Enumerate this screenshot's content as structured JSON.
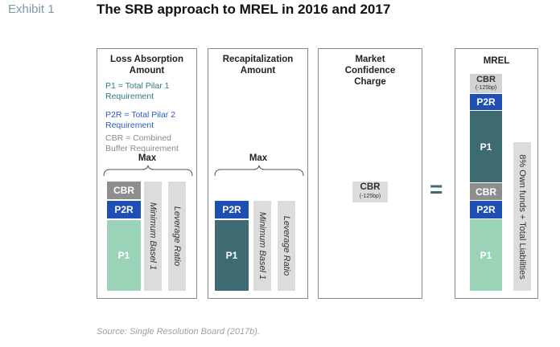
{
  "header": {
    "exhibit": "Exhibit 1",
    "title": "The SRB approach to MREL in 2016 and 2017"
  },
  "panels": {
    "loss_absorption": {
      "title_line1": "Loss Absorption",
      "title_line2": "Amount",
      "legend": {
        "p1": "P1 = Total Pilar 1 Requirement",
        "p2r": "P2R = Total Pilar 2 Requirement",
        "cbr": "CBR = Combined Buffer Requirement"
      },
      "max_label": "Max",
      "blocks": {
        "cbr": "CBR",
        "p2r": "P2R",
        "p1": "P1"
      },
      "bars": {
        "min_basel": "Minimum Basel 1",
        "leverage": "Leverage Ratio"
      }
    },
    "recapitalization": {
      "title_line1": "Recapitalization",
      "title_line2": "Amount",
      "max_label": "Max",
      "blocks": {
        "p2r": "P2R",
        "p1": "P1"
      },
      "bars": {
        "min_basel": "Minimum Basel 1",
        "leverage": "Leverage Ratio"
      }
    },
    "market_confidence": {
      "title_line1": "Market",
      "title_line2": "Confidence",
      "title_line3": "Charge",
      "cbr_label": "CBR",
      "cbr_note": "(-125bp)"
    },
    "mrel": {
      "title": "MREL",
      "top_cbr_label": "CBR",
      "top_cbr_note": "(-125bp)",
      "blocks": {
        "p2r_top": "P2R",
        "p1_top": "P1",
        "cbr": "CBR",
        "p2r": "P2R",
        "p1": "P1"
      },
      "side_label": "8% Own funds + Total Liabilities"
    }
  },
  "equals": "=",
  "source": "Source: Single Resolution Board (2017b).",
  "colors": {
    "p1_light": "#9bd3b8",
    "p1_dark": "#3e6b72",
    "p2r": "#1f4fb5",
    "cbr": "#8e8e8e",
    "legend_p1": "#2f7a7a",
    "legend_p2r": "#2a5bbf",
    "legend_cbr": "#8a8a8a"
  }
}
